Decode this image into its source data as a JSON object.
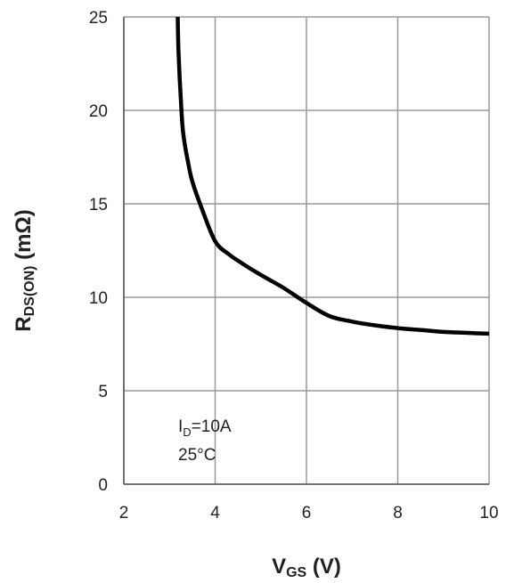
{
  "chart_data": {
    "type": "line",
    "title": "",
    "xlabel": {
      "main": "V",
      "sub": "GS",
      "unit": " (V)"
    },
    "ylabel": {
      "main": "R",
      "sub": "DS(ON)",
      "unit": " (mΩ)"
    },
    "xlim": [
      2,
      10
    ],
    "ylim": [
      0,
      25
    ],
    "xticks": [
      "2",
      "4",
      "6",
      "8",
      "10"
    ],
    "yticks": [
      "0",
      "5",
      "10",
      "15",
      "20",
      "25"
    ],
    "grid": true,
    "annotation": {
      "line1_main": "I",
      "line1_sub": "D",
      "line1_value": "=10A",
      "line2": "25°C"
    },
    "series": [
      {
        "x": [
          3.18,
          3.2,
          3.25,
          3.3,
          3.4,
          3.5,
          3.7,
          4.0,
          4.3,
          4.6,
          5.0,
          5.5,
          6.0,
          6.5,
          7.0,
          7.5,
          8.0,
          8.5,
          9.0,
          9.5,
          10.0
        ],
        "y": [
          25.0,
          23.0,
          20.5,
          18.8,
          17.3,
          16.2,
          14.8,
          13.0,
          12.3,
          11.8,
          11.2,
          10.5,
          9.7,
          9.0,
          8.7,
          8.5,
          8.35,
          8.25,
          8.15,
          8.1,
          8.05
        ]
      }
    ]
  }
}
